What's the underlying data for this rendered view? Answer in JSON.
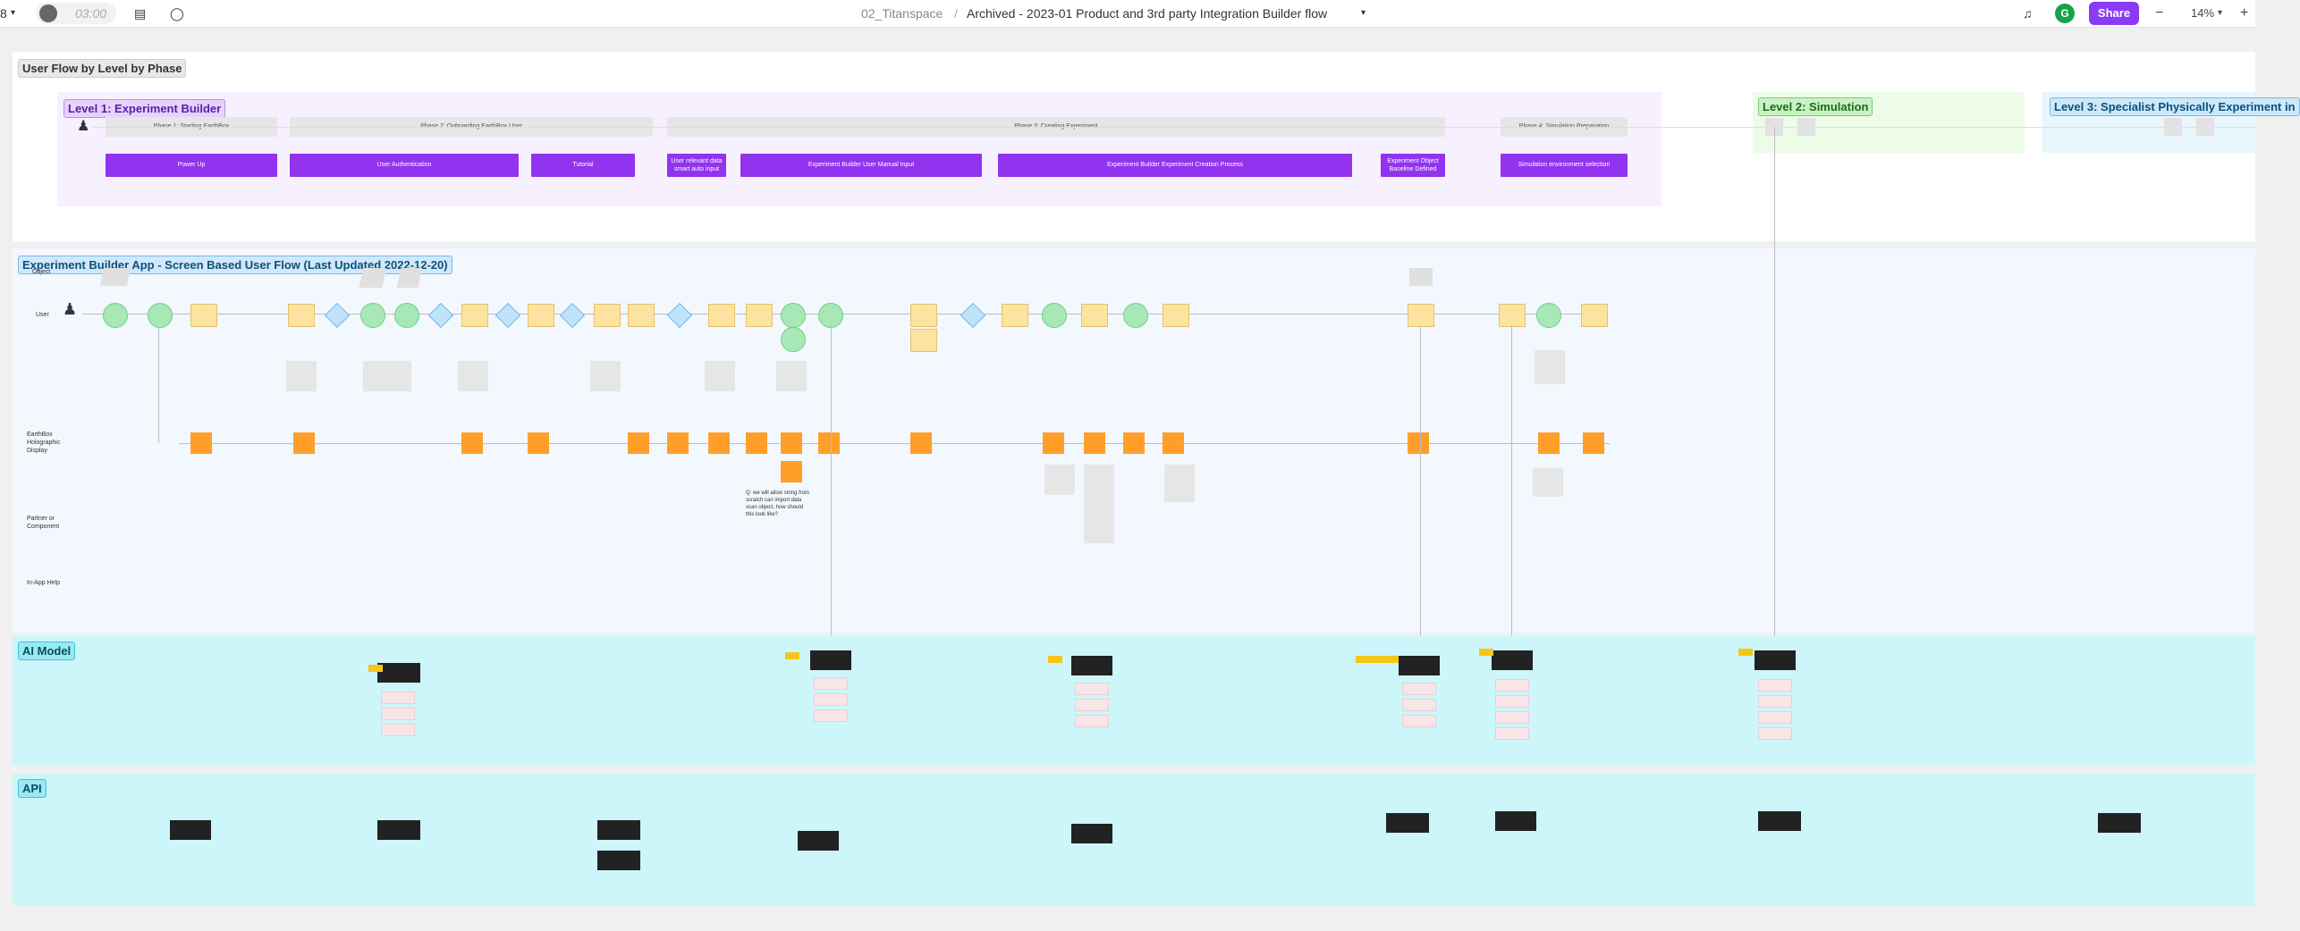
{
  "toolbar": {
    "page_indicator": "8",
    "timer": "03:00",
    "project": "02_Titanspace",
    "separator": "/",
    "file_title": "Archived - 2023-01 Product and 3rd party Integration Builder flow",
    "avatar_initial": "G",
    "share_label": "Share",
    "zoom": "14%",
    "minus": "−",
    "plus": "+"
  },
  "level_section": {
    "title": "User Flow by Level by Phase",
    "level1": "Level 1: Experiment Builder",
    "level2": "Level 2: Simulation",
    "level3": "Level 3: Specialist Physically Experiment in",
    "phases": [
      "Phase 1: Starting EarthBox",
      "Phase 2: Onboarding EarthBox User",
      "Phase 3: Creating Experiment",
      "Phase 4: Simulation Preparation"
    ],
    "steps": [
      "Power Up",
      "User Authentication",
      "Tutorial",
      "User relevant data smart auto input",
      "Experiment Builder User Manual Input",
      "Experiment Builder Experiment Creation Process",
      "Experiment Object Baseline Defined",
      "Simulation environment selection"
    ]
  },
  "flow_section": {
    "title": "Experiment Builder App - Screen Based User Flow (Last Updated 2022-12-20)",
    "rows": [
      "Object",
      "User",
      "EarthBox Holographic Display",
      "Partner or Component",
      "In-App Help"
    ],
    "question_note": "Q: we will allow string from scratch can import data scan object, how should this look like?"
  },
  "ai_section": {
    "title": "AI Model"
  },
  "api_section": {
    "title": "API"
  },
  "colors": {
    "accent": "#8b3bf5",
    "step": "#9233f0",
    "ai_bg": "#cdf6fb",
    "flow_bg": "#f2f8fd"
  }
}
